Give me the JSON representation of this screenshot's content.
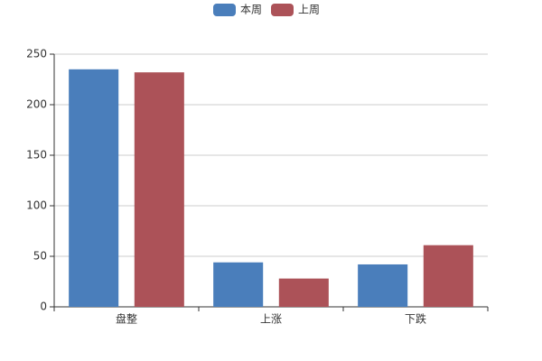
{
  "chart_data": {
    "type": "bar",
    "categories": [
      "盘整",
      "上涨",
      "下跌"
    ],
    "series": [
      {
        "name": "本周",
        "color": "#4a7ebb",
        "values": [
          235,
          44,
          42
        ]
      },
      {
        "name": "上周",
        "color": "#ac5258",
        "values": [
          232,
          28,
          61
        ]
      }
    ],
    "ylim": [
      0,
      250
    ],
    "yticks": [
      0,
      50,
      100,
      150,
      200,
      250
    ],
    "grid": true,
    "legend": "top"
  }
}
